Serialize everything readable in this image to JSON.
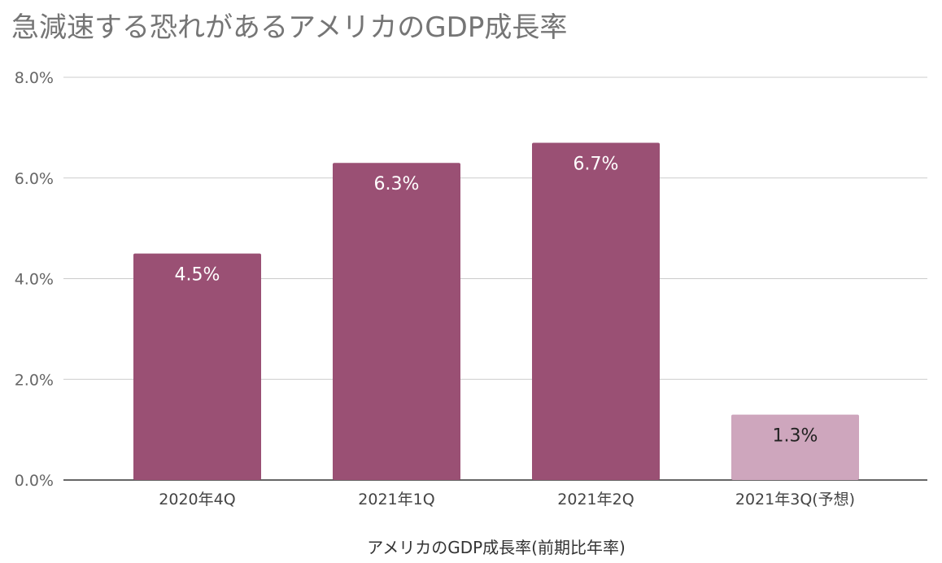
{
  "chart_data": {
    "type": "bar",
    "title": "急減速する恐れがあるアメリカのGDP成長率",
    "xlabel": "アメリカのGDP成長率(前期比年率)",
    "ylabel": "",
    "categories": [
      "2020年4Q",
      "2021年1Q",
      "2021年2Q",
      "2021年3Q(予想)"
    ],
    "values": [
      4.5,
      6.3,
      6.7,
      1.3
    ],
    "data_labels": [
      "4.5%",
      "6.3%",
      "6.7%",
      "1.3%"
    ],
    "ylim": [
      0,
      8
    ],
    "yticks": [
      0,
      2,
      4,
      6,
      8
    ],
    "ytick_labels": [
      "0.0%",
      "2.0%",
      "4.0%",
      "6.0%",
      "8.0%"
    ],
    "grid": true,
    "legend": "none",
    "colors": {
      "actual": "#9a5074",
      "forecast": "#cea6bd",
      "label_on_actual": "#ffffff",
      "label_on_forecast": "#222222"
    },
    "bar_colors": [
      "actual",
      "actual",
      "actual",
      "forecast"
    ]
  }
}
